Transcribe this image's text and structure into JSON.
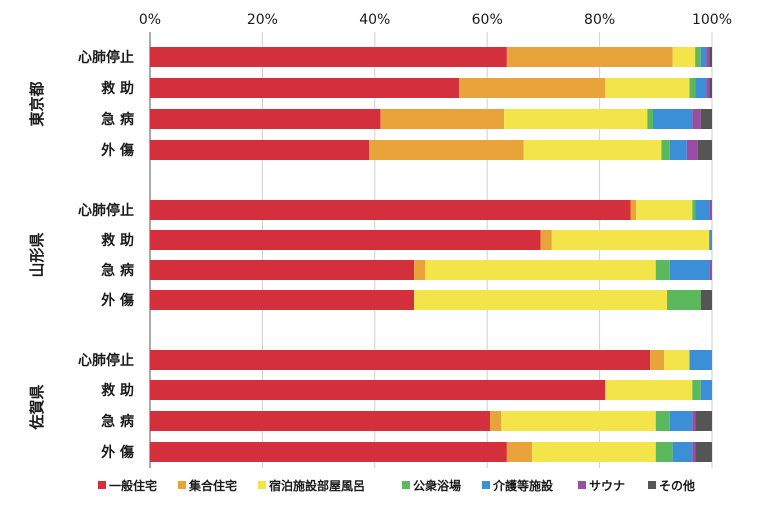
{
  "chart_data": {
    "type": "bar",
    "orientation": "horizontal",
    "stacked": true,
    "percent_axis": true,
    "xlim": [
      0,
      100
    ],
    "x_ticks": [
      "0%",
      "20%",
      "40%",
      "60%",
      "80%",
      "100%"
    ],
    "grid": true,
    "legend_position": "bottom",
    "groups": [
      {
        "label": "東京都",
        "rows": [
          {
            "label": "心肺停止",
            "values": [
              63.5,
              29.5,
              4.0,
              1.0,
              1.0,
              0.5,
              0.5
            ]
          },
          {
            "label": "救 助",
            "values": [
              55.0,
              26.0,
              15.0,
              1.0,
              2.0,
              0.5,
              0.5
            ]
          },
          {
            "label": "急 病",
            "values": [
              41.0,
              22.0,
              25.5,
              1.0,
              7.0,
              1.5,
              2.0
            ]
          },
          {
            "label": "外 傷",
            "values": [
              39.0,
              27.5,
              24.5,
              1.5,
              3.0,
              2.0,
              2.5
            ]
          }
        ]
      },
      {
        "label": "山形県",
        "rows": [
          {
            "label": "心肺停止",
            "values": [
              85.5,
              1.0,
              10.0,
              0.5,
              2.5,
              0.5,
              0.0
            ]
          },
          {
            "label": "救 助",
            "values": [
              69.5,
              2.0,
              28.0,
              0.0,
              0.5,
              0.0,
              0.0
            ]
          },
          {
            "label": "急 病",
            "values": [
              47.0,
              2.0,
              41.0,
              2.5,
              7.0,
              0.5,
              0.0
            ]
          },
          {
            "label": "外 傷",
            "values": [
              47.0,
              0.0,
              45.0,
              6.0,
              0.0,
              0.0,
              2.0
            ]
          }
        ]
      },
      {
        "label": "佐賀県",
        "rows": [
          {
            "label": "心肺停止",
            "values": [
              89.0,
              2.5,
              4.5,
              0.0,
              4.0,
              0.0,
              0.0
            ]
          },
          {
            "label": "救 助",
            "values": [
              81.0,
              0.0,
              15.5,
              1.5,
              2.0,
              0.0,
              0.0
            ]
          },
          {
            "label": "急 病",
            "values": [
              60.5,
              2.0,
              27.5,
              2.5,
              4.0,
              0.5,
              3.0
            ]
          },
          {
            "label": "外 傷",
            "values": [
              63.5,
              4.5,
              22.0,
              3.0,
              3.5,
              0.5,
              3.0
            ]
          }
        ]
      }
    ],
    "series": [
      {
        "name": "一般住宅",
        "color": "#d32f3c"
      },
      {
        "name": "集合住宅",
        "color": "#e8a33a"
      },
      {
        "name": "宿泊施設部屋風呂",
        "color": "#f3e44a"
      },
      {
        "name": "公衆浴場",
        "color": "#5cb85c"
      },
      {
        "name": "介護等施設",
        "color": "#3a8fd6"
      },
      {
        "name": "サウナ",
        "color": "#9b4da5"
      },
      {
        "name": "その他",
        "color": "#555555"
      }
    ]
  }
}
